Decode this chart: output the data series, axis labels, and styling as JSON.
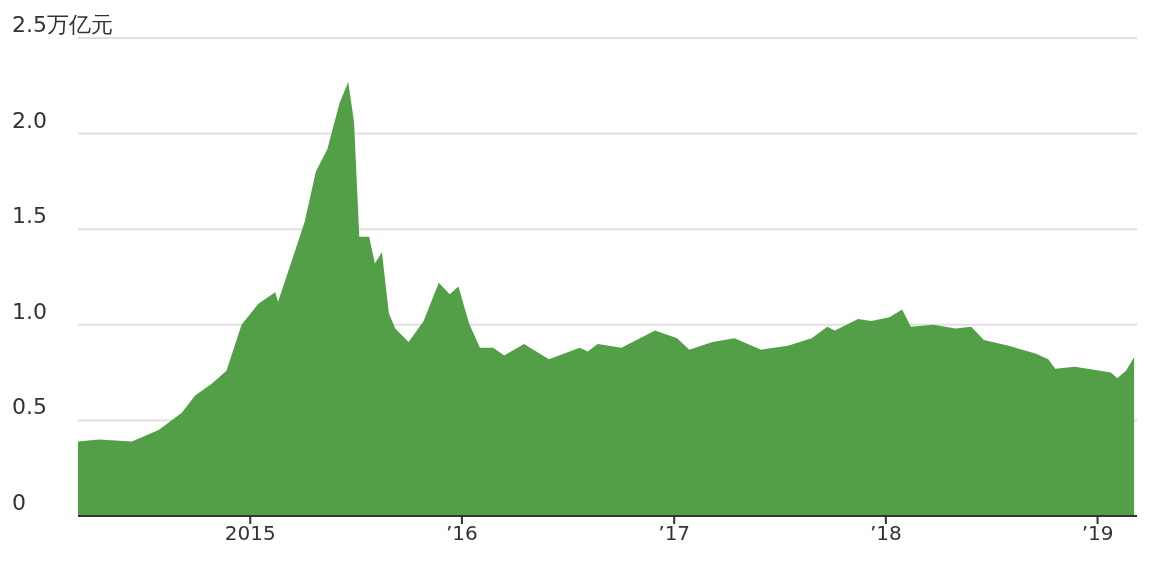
{
  "chart_data": {
    "type": "area",
    "color": "#529f47",
    "grid": "y",
    "xlim": [
      "2014-03-10",
      "2019-03-10"
    ],
    "xticks": [
      {
        "value": "2015-01-01",
        "label": "2015"
      },
      {
        "value": "2016-01-01",
        "label": "’16"
      },
      {
        "value": "2017-01-01",
        "label": "’17"
      },
      {
        "value": "2018-01-01",
        "label": "’18"
      },
      {
        "value": "2019-01-01",
        "label": "’19"
      }
    ],
    "ylim": [
      0,
      2.5
    ],
    "yticks": [
      0,
      0.5,
      {
        "value": 1,
        "label": "1.0"
      },
      1.5,
      {
        "value": 2,
        "label": "2.0"
      },
      {
        "value": 2.5,
        "label": "2.5万亿元"
      }
    ],
    "x": [
      "2014-03-10",
      "2014-04-15",
      "2014-06-11",
      "2014-07-27",
      "2014-09-05",
      "2014-09-28",
      "2014-10-26",
      "2014-11-21",
      "2014-12-17",
      "2015-01-15",
      "2015-02-13",
      "2015-02-18",
      "2015-03-12",
      "2015-04-05",
      "2015-04-24",
      "2015-05-14",
      "2015-06-04",
      "2015-06-19",
      "2015-06-29",
      "2015-07-08",
      "2015-07-25",
      "2015-08-04",
      "2015-08-16",
      "2015-08-28",
      "2015-09-08",
      "2015-10-01",
      "2015-10-27",
      "2015-11-22",
      "2015-12-11",
      "2015-12-26",
      "2016-01-13",
      "2016-02-01",
      "2016-02-24",
      "2016-03-14",
      "2016-04-17",
      "2016-05-30",
      "2016-07-22",
      "2016-08-05",
      "2016-08-22",
      "2016-10-02",
      "2016-11-29",
      "2017-01-06",
      "2017-01-27",
      "2017-03-08",
      "2017-04-15",
      "2017-05-31",
      "2017-07-16",
      "2017-08-26",
      "2017-09-22",
      "2017-10-05",
      "2017-11-14",
      "2017-12-07",
      "2018-01-07",
      "2018-01-29",
      "2018-02-13",
      "2018-03-24",
      "2018-05-01",
      "2018-05-28",
      "2018-06-19",
      "2018-08-01",
      "2018-09-16",
      "2018-10-08",
      "2018-10-20",
      "2018-11-23",
      "2019-01-24",
      "2019-02-04",
      "2019-02-19",
      "2019-03-05"
    ],
    "values": [
      0.39,
      0.4,
      0.39,
      0.45,
      0.54,
      0.63,
      0.69,
      0.76,
      1.0,
      1.11,
      1.17,
      1.12,
      1.32,
      1.54,
      1.8,
      1.92,
      2.16,
      2.27,
      2.06,
      1.46,
      1.46,
      1.32,
      1.38,
      1.06,
      0.98,
      0.91,
      1.02,
      1.22,
      1.16,
      1.2,
      1.01,
      0.88,
      0.88,
      0.84,
      0.9,
      0.82,
      0.88,
      0.86,
      0.9,
      0.88,
      0.97,
      0.93,
      0.87,
      0.91,
      0.93,
      0.87,
      0.89,
      0.93,
      0.99,
      0.97,
      1.03,
      1.02,
      1.04,
      1.08,
      0.99,
      1.0,
      0.98,
      0.99,
      0.92,
      0.89,
      0.85,
      0.82,
      0.77,
      0.78,
      0.75,
      0.72,
      0.76,
      0.83
    ]
  }
}
